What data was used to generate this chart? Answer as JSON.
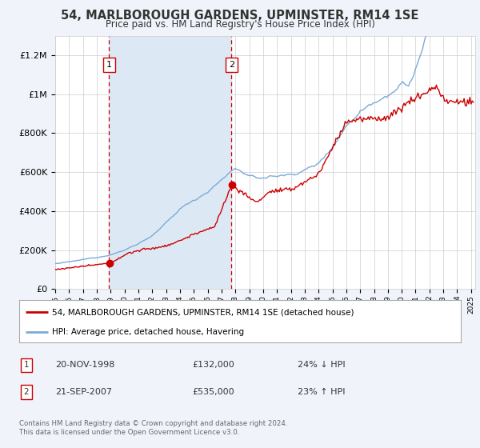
{
  "title": "54, MARLBOROUGH GARDENS, UPMINSTER, RM14 1SE",
  "subtitle": "Price paid vs. HM Land Registry's House Price Index (HPI)",
  "red_label": "54, MARLBOROUGH GARDENS, UPMINSTER, RM14 1SE (detached house)",
  "blue_label": "HPI: Average price, detached house, Havering",
  "sale1_date": "20-NOV-1998",
  "sale1_price": 132000,
  "sale1_note": "24% ↓ HPI",
  "sale2_date": "21-SEP-2007",
  "sale2_price": 535000,
  "sale2_note": "23% ↑ HPI",
  "footer": "Contains HM Land Registry data © Crown copyright and database right 2024.\nThis data is licensed under the Open Government Licence v3.0.",
  "background_color": "#f0f4fa",
  "plot_bg": "#ffffff",
  "red_color": "#cc0000",
  "blue_color": "#7aabda",
  "shade_color": "#dde8f5",
  "ylim": [
    0,
    1300000
  ],
  "yticks": [
    0,
    200000,
    400000,
    600000,
    800000,
    1000000,
    1200000
  ],
  "sale1_year": 1998.88,
  "sale2_year": 2007.71
}
